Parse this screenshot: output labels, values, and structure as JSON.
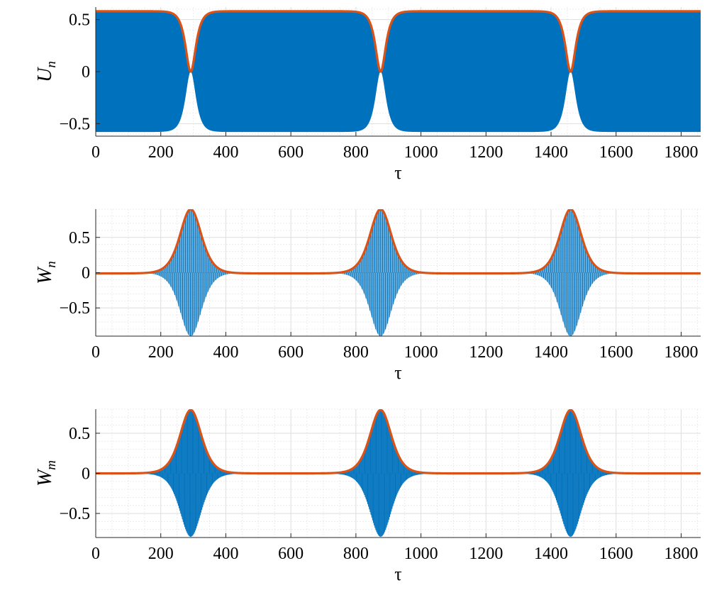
{
  "chart_data": [
    {
      "type": "line",
      "ylabel": {
        "main": "U",
        "sub": "n"
      },
      "xlabel": "τ",
      "xlim": [
        0,
        1860
      ],
      "ylim": [
        -0.62,
        0.62
      ],
      "xticks": [
        0,
        200,
        400,
        600,
        800,
        1000,
        1200,
        1400,
        1600,
        1800
      ],
      "xtick_labels": [
        "0",
        "200",
        "400",
        "600",
        "800",
        "1000",
        "1200",
        "1400",
        "1600",
        "1800"
      ],
      "yticks": [
        0.5,
        0,
        -0.5
      ],
      "ytick_labels": [
        "0.5",
        "0",
        "−0.5"
      ],
      "grid": true,
      "series": [
        {
          "role": "oscillation",
          "color": "#0072BD",
          "peak_amplitude": 0.58,
          "valley_centers": [
            292,
            876,
            1460
          ],
          "valley_amplitude": 0.0,
          "carrier_period": 2.2
        },
        {
          "role": "envelope",
          "color": "#D95319",
          "points": [
            [
              0,
              0.58
            ],
            [
              200,
              0.575
            ],
            [
              260,
              0.45
            ],
            [
              292,
              0.0
            ],
            [
              324,
              0.45
            ],
            [
              384,
              0.575
            ],
            [
              700,
              0.58
            ],
            [
              816,
              0.575
            ],
            [
              860,
              0.45
            ],
            [
              876,
              0.0
            ],
            [
              892,
              0.45
            ],
            [
              936,
              0.575
            ],
            [
              1400,
              0.58
            ],
            [
              1420,
              0.45
            ],
            [
              1460,
              0.0
            ],
            [
              1500,
              0.45
            ],
            [
              1540,
              0.575
            ],
            [
              1860,
              0.58
            ]
          ]
        }
      ]
    },
    {
      "type": "line",
      "ylabel": {
        "main": "W",
        "sub": "n"
      },
      "xlabel": "τ",
      "xlim": [
        0,
        1860
      ],
      "ylim": [
        -0.9,
        0.9
      ],
      "xticks": [
        0,
        200,
        400,
        600,
        800,
        1000,
        1200,
        1400,
        1600,
        1800
      ],
      "xtick_labels": [
        "0",
        "200",
        "400",
        "600",
        "800",
        "1000",
        "1200",
        "1400",
        "1600",
        "1800"
      ],
      "yticks": [
        0.5,
        0,
        -0.5
      ],
      "ytick_labels": [
        "0.5",
        "0",
        "−0.5"
      ],
      "grid": true,
      "series": [
        {
          "role": "oscillation",
          "color": "#0072BD",
          "peak_amplitude": 0.9,
          "peak_centers": [
            292,
            876,
            1460
          ],
          "carrier_period": 6
        },
        {
          "role": "envelope",
          "color": "#D95319",
          "peak_value": 0.9,
          "baseline": -0.01,
          "peak_centers": [
            292,
            876,
            1460
          ]
        }
      ]
    },
    {
      "type": "line",
      "ylabel": {
        "main": "W",
        "sub": "m"
      },
      "xlabel": "τ",
      "xlim": [
        0,
        1860
      ],
      "ylim": [
        -0.8,
        0.8
      ],
      "xticks": [
        0,
        200,
        400,
        600,
        800,
        1000,
        1200,
        1400,
        1600,
        1800
      ],
      "xtick_labels": [
        "0",
        "200",
        "400",
        "600",
        "800",
        "1000",
        "1200",
        "1400",
        "1600",
        "1800"
      ],
      "yticks": [
        0.5,
        0,
        -0.5
      ],
      "ytick_labels": [
        "0.5",
        "0",
        "−0.5"
      ],
      "grid": true,
      "series": [
        {
          "role": "oscillation",
          "color": "#0072BD",
          "peak_amplitude": 0.79,
          "peak_centers": [
            292,
            876,
            1460
          ],
          "carrier_period": 2.5
        },
        {
          "role": "envelope",
          "color": "#D95319",
          "peak_value": 0.79,
          "baseline": 0.0,
          "peak_centers": [
            292,
            876,
            1460
          ]
        }
      ]
    }
  ]
}
